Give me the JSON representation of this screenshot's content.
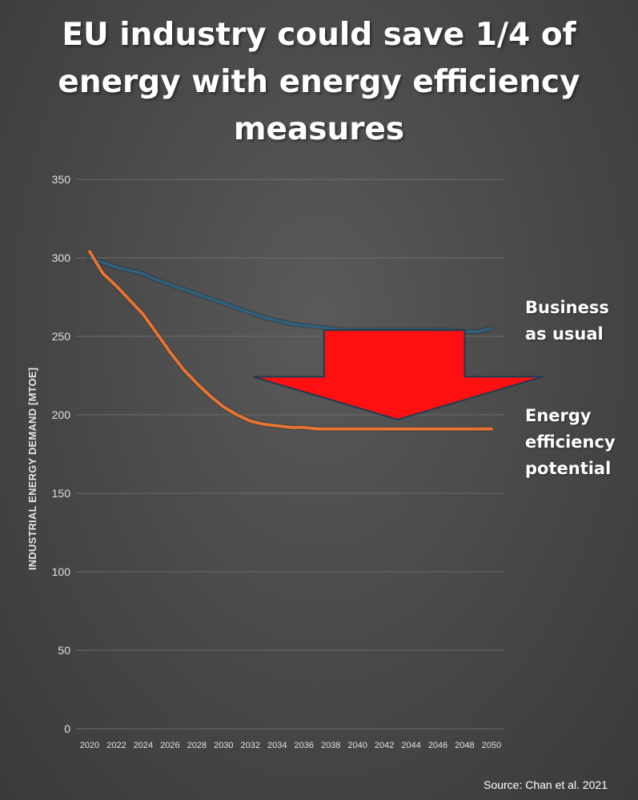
{
  "title": "EU industry could save 1/4 of energy with energy efficiency measures",
  "source": "Source: Chan et al. 2021",
  "annotations": {
    "business_as_usual": [
      "Business",
      "as usual"
    ],
    "energy_efficiency_potential": [
      "Energy",
      "efficiency",
      "potential"
    ]
  },
  "colors": {
    "business_as_usual": "#2e5f7c",
    "energy_efficiency": "#e57432",
    "arrow": "#ff1010",
    "gridline": "#6b6b6b"
  },
  "chart_data": {
    "type": "line",
    "ylabel": "INDUSTRIAL ENERGY DEMAND [MTOE]",
    "xlabel": "",
    "ylim": [
      0,
      350
    ],
    "yticks": [
      0,
      50,
      100,
      150,
      200,
      250,
      300,
      350
    ],
    "xticks": [
      "2020",
      "2022",
      "2024",
      "2026",
      "2028",
      "2030",
      "2032",
      "2034",
      "2036",
      "2038",
      "2040",
      "2042",
      "2044",
      "2046",
      "2048",
      "2050"
    ],
    "xrange": [
      2020,
      2050
    ],
    "grid": true,
    "series": [
      {
        "name": "Business as usual",
        "x": [
          2020,
          2021,
          2022,
          2023,
          2024,
          2025,
          2026,
          2027,
          2028,
          2029,
          2030,
          2031,
          2032,
          2033,
          2034,
          2035,
          2036,
          2037,
          2038,
          2039,
          2040,
          2041,
          2042,
          2043,
          2044,
          2045,
          2046,
          2047,
          2048,
          2049,
          2050
        ],
        "values": [
          300,
          297,
          294,
          292,
          290,
          286,
          283,
          280,
          277,
          274,
          271,
          268,
          265,
          262,
          260,
          258,
          257,
          256,
          255,
          254,
          254,
          254,
          254,
          254,
          254,
          254,
          254,
          254,
          253,
          253,
          255
        ]
      },
      {
        "name": "Energy efficiency potential",
        "x": [
          2020,
          2021,
          2022,
          2023,
          2024,
          2025,
          2026,
          2027,
          2028,
          2029,
          2030,
          2031,
          2032,
          2033,
          2034,
          2035,
          2036,
          2037,
          2038,
          2039,
          2040,
          2042,
          2044,
          2046,
          2048,
          2050
        ],
        "values": [
          304,
          290,
          282,
          273,
          264,
          252,
          240,
          229,
          220,
          212,
          205,
          200,
          196,
          194,
          193,
          192,
          192,
          191,
          191,
          191,
          191,
          191,
          191,
          191,
          191,
          191
        ]
      }
    ],
    "annotations": [
      {
        "type": "arrow",
        "direction": "down",
        "from_value": 254,
        "to_value": 197,
        "x_from": 2037.5,
        "x_to": 2048,
        "x_tip": 2043
      }
    ]
  }
}
